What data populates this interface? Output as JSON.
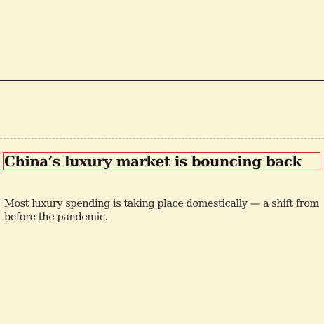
{
  "article": {
    "headline": "China’s luxury market is bouncing back",
    "standfirst": "Most luxury spending is taking place domestically — a shift from before the pandemic."
  },
  "colors": {
    "background": "#f8f4d8",
    "highlight_border": "#d9262b",
    "rule": "#1c1c1c"
  }
}
